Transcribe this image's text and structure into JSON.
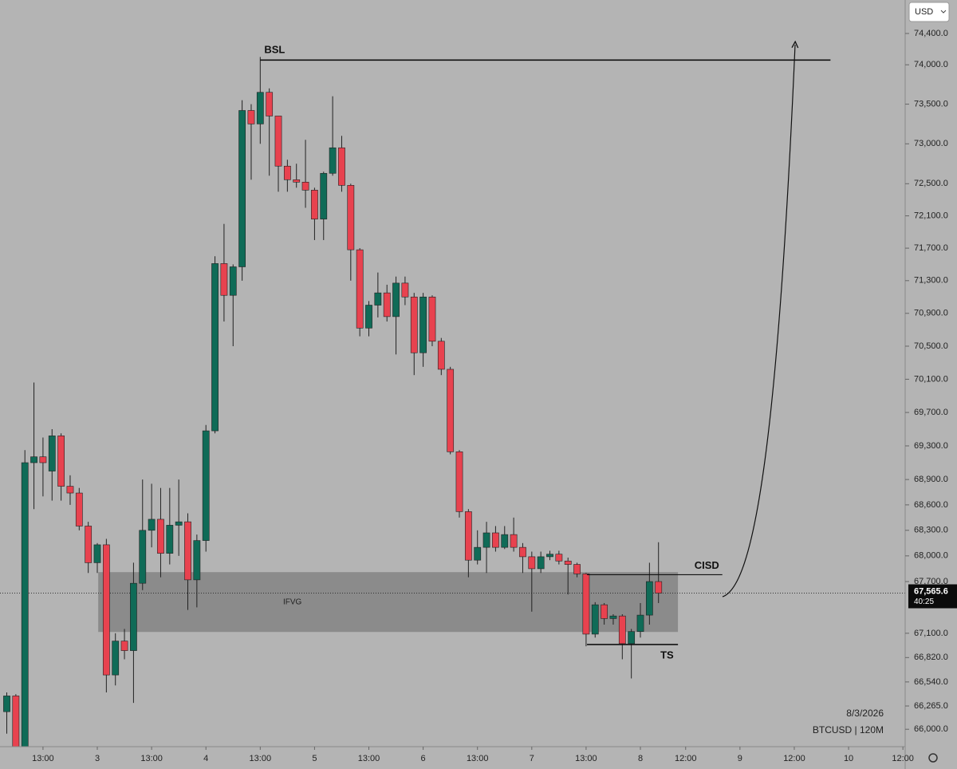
{
  "chart_data": {
    "type": "candlestick",
    "symbol": "BTCUSD | 120M",
    "date": "8/3/2026",
    "currency": "USD",
    "log_scale": true,
    "up_color": "#0f6b57",
    "down_color": "#e8424f",
    "x": [
      4,
      6,
      8,
      10,
      12,
      14,
      16,
      18,
      20,
      22,
      24,
      26,
      28,
      30,
      32,
      34,
      36,
      38,
      40,
      42,
      44,
      46,
      48,
      50,
      52,
      54,
      56,
      58,
      60,
      62,
      64,
      66,
      68,
      70,
      72,
      74,
      76,
      78,
      80,
      82,
      84,
      86,
      88,
      90,
      92,
      94,
      96,
      98,
      100,
      102,
      104,
      106,
      108,
      110,
      112,
      114,
      116,
      118,
      120,
      122,
      124,
      126,
      128,
      130,
      132,
      134,
      136,
      138,
      140,
      142,
      144,
      146,
      148
    ],
    "open": [
      66200,
      66380,
      65700,
      69100,
      69170,
      69000,
      69420,
      68820,
      68740,
      68350,
      67920,
      68130,
      66620,
      67010,
      66900,
      67680,
      68300,
      68430,
      68030,
      68360,
      68400,
      67720,
      68180,
      69480,
      71510,
      71120,
      71470,
      73420,
      73250,
      73650,
      73350,
      72720,
      72550,
      72520,
      72420,
      72060,
      72630,
      72950,
      72480,
      71680,
      70720,
      71000,
      71150,
      70860,
      71270,
      71100,
      70420,
      71100,
      70560,
      70220,
      69230,
      68520,
      67950,
      68100,
      68270,
      68100,
      68250,
      68100,
      67990,
      67850,
      67990,
      68020,
      67940,
      67900,
      67790,
      67090,
      67430,
      67270,
      67300,
      66980,
      67120,
      67310,
      67700
    ],
    "high": [
      66420,
      66400,
      69250,
      70060,
      69400,
      69500,
      69450,
      68950,
      68800,
      68400,
      68150,
      68200,
      67100,
      67150,
      67920,
      68900,
      68850,
      68800,
      68800,
      68900,
      68500,
      68250,
      69550,
      71600,
      72000,
      71500,
      73550,
      73500,
      74100,
      73700,
      73350,
      72800,
      72750,
      73050,
      72450,
      72650,
      73600,
      73100,
      72500,
      71700,
      71050,
      71400,
      71250,
      71350,
      71350,
      71150,
      71150,
      71120,
      70600,
      70250,
      69250,
      68550,
      68300,
      68400,
      68350,
      68350,
      68450,
      68150,
      68050,
      68050,
      68060,
      68060,
      67980,
      67920,
      67800,
      67460,
      67450,
      67320,
      67320,
      67150,
      67450,
      67920,
      68160
    ],
    "low": [
      65950,
      65600,
      65600,
      68550,
      68700,
      68650,
      68650,
      68600,
      68300,
      67800,
      67800,
      66420,
      66500,
      66800,
      66300,
      67600,
      68100,
      67750,
      67900,
      68000,
      67370,
      67400,
      68050,
      69450,
      70800,
      70500,
      71300,
      72550,
      73000,
      72600,
      72400,
      72400,
      72450,
      72200,
      71800,
      71800,
      72600,
      72400,
      71300,
      70620,
      70620,
      70850,
      70800,
      70400,
      71000,
      70150,
      70250,
      70500,
      70150,
      69200,
      68450,
      67750,
      67900,
      67800,
      68050,
      68080,
      68050,
      67800,
      67350,
      67800,
      67950,
      67900,
      67550,
      67750,
      66950,
      67050,
      67200,
      67200,
      66800,
      66580,
      67050,
      67200,
      67450
    ],
    "close": [
      66380,
      65700,
      69100,
      69170,
      69100,
      69420,
      68820,
      68740,
      68350,
      67920,
      68130,
      66620,
      67010,
      66900,
      67680,
      68300,
      68430,
      68030,
      68360,
      68400,
      67720,
      68180,
      69480,
      71510,
      71120,
      71470,
      73420,
      73250,
      73650,
      73350,
      72720,
      72550,
      72520,
      72420,
      72060,
      72630,
      72950,
      72480,
      71680,
      70720,
      71000,
      71150,
      70860,
      71270,
      71100,
      70420,
      71100,
      70560,
      70220,
      69230,
      68520,
      67950,
      68100,
      68270,
      68100,
      68250,
      68100,
      67990,
      67850,
      67990,
      68020,
      67940,
      67900,
      67790,
      67090,
      67430,
      67270,
      67300,
      66980,
      67120,
      67310,
      67700,
      67565.6
    ],
    "xlim": [
      2.5,
      202.5
    ],
    "xticks": [
      {
        "value": 12,
        "label": "13:00"
      },
      {
        "value": 24,
        "label": "3"
      },
      {
        "value": 36,
        "label": "13:00"
      },
      {
        "value": 48,
        "label": "4"
      },
      {
        "value": 60,
        "label": "13:00"
      },
      {
        "value": 72,
        "label": "5"
      },
      {
        "value": 84,
        "label": "13:00"
      },
      {
        "value": 96,
        "label": "6"
      },
      {
        "value": 108,
        "label": "13:00"
      },
      {
        "value": 120,
        "label": "7"
      },
      {
        "value": 132,
        "label": "13:00"
      },
      {
        "value": 144,
        "label": "8"
      },
      {
        "value": 154,
        "label": "12:00"
      },
      {
        "value": 166,
        "label": "9"
      },
      {
        "value": 178,
        "label": "12:00"
      },
      {
        "value": 190,
        "label": "10"
      },
      {
        "value": 202,
        "label": "12:00"
      }
    ],
    "ylim": [
      65550,
      74830
    ],
    "yticks": [
      {
        "value": 74400,
        "label": "74,400.0"
      },
      {
        "value": 74000,
        "label": "74,000.0"
      },
      {
        "value": 73500,
        "label": "73,500.0"
      },
      {
        "value": 73000,
        "label": "73,000.0"
      },
      {
        "value": 72500,
        "label": "72,500.0"
      },
      {
        "value": 72100,
        "label": "72,100.0"
      },
      {
        "value": 71700,
        "label": "71,700.0"
      },
      {
        "value": 71300,
        "label": "71,300.0"
      },
      {
        "value": 70900,
        "label": "70,900.0"
      },
      {
        "value": 70500,
        "label": "70,500.0"
      },
      {
        "value": 70100,
        "label": "70,100.0"
      },
      {
        "value": 69700,
        "label": "69,700.0"
      },
      {
        "value": 69300,
        "label": "69,300.0"
      },
      {
        "value": 68900,
        "label": "68,900.0"
      },
      {
        "value": 68600,
        "label": "68,600.0"
      },
      {
        "value": 68300,
        "label": "68,300.0"
      },
      {
        "value": 68000,
        "label": "68,000.0"
      },
      {
        "value": 67700,
        "label": "67,700.0"
      },
      {
        "value": 67100,
        "label": "67,100.0"
      },
      {
        "value": 66820,
        "label": "66,820.0"
      },
      {
        "value": 66540,
        "label": "66,540.0"
      },
      {
        "value": 66265,
        "label": "66,265.0"
      },
      {
        "value": 66000,
        "label": "66,000.0"
      }
    ],
    "last_price": {
      "value": 67565.6,
      "label": "67,565.6"
    },
    "countdown": "40:25",
    "annotations": {
      "bsl": {
        "label": "BSL",
        "level": 74060,
        "x": [
          60,
          186
        ]
      },
      "ifvg": {
        "label": "IFVG",
        "range": [
          67115,
          67810
        ],
        "x": [
          24.2,
          152.3
        ]
      },
      "cisd": {
        "label": "CISD",
        "level": 67780,
        "x": [
          132.2,
          162.1
        ]
      },
      "ts": {
        "label": "TS",
        "level": 66970,
        "x": [
          132.2,
          152.3
        ]
      }
    }
  }
}
